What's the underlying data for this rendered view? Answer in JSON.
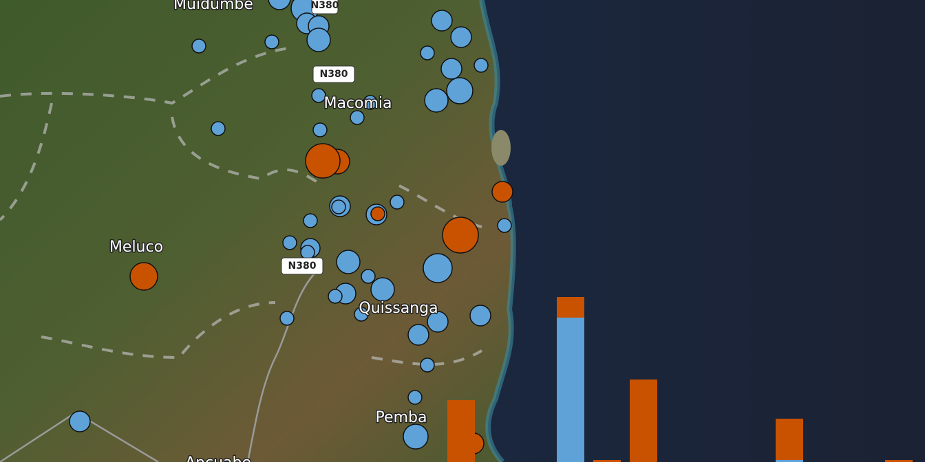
{
  "places": {
    "muidumbe": "Muidumbe",
    "macomia": "Macomia",
    "meluco": "Meluco",
    "quissanga": "Quissanga",
    "pemba": "Pemba",
    "ancuabe": "Ancuabe"
  },
  "roads": [
    "N380",
    "N380",
    "N380"
  ],
  "chart_data": {
    "type": "bar",
    "categories": [
      null,
      null,
      null,
      null,
      null,
      null,
      null,
      null,
      null,
      null,
      null,
      null,
      null
    ],
    "series": [
      {
        "color": "#5fa2d8",
        "values": [
          0,
          0,
          0,
          70,
          0,
          0,
          0,
          0,
          0,
          1,
          0,
          0,
          0
        ]
      },
      {
        "color": "#c85200",
        "values": [
          30,
          0,
          0,
          10,
          1,
          40,
          0,
          0,
          0,
          20,
          0,
          0,
          1
        ]
      }
    ]
  }
}
